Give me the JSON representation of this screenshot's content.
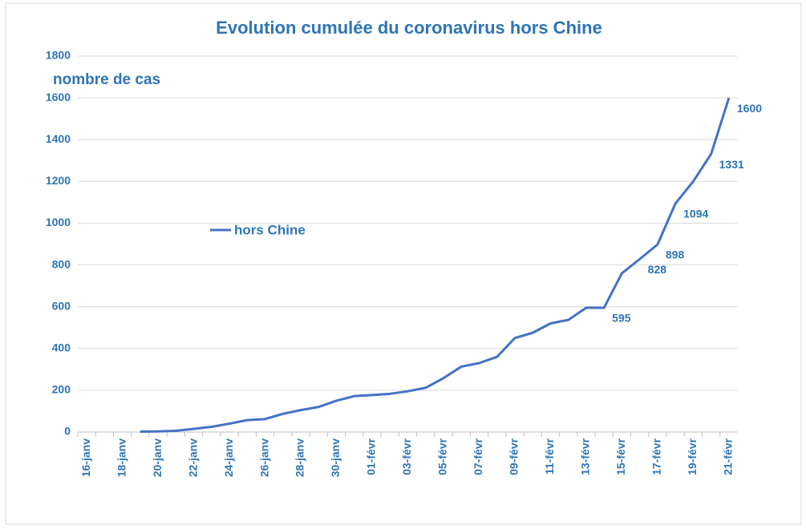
{
  "chart_data": {
    "type": "line",
    "title": "Evolution cumulée du coronavirus hors  Chine",
    "y_label": "nombre de cas",
    "categories": [
      "16-janv",
      null,
      "18-janv",
      null,
      "20-janv",
      null,
      "22-janv",
      null,
      "24-janv",
      null,
      "26-janv",
      null,
      "28-janv",
      null,
      "30-janv",
      null,
      "01-févr",
      null,
      "03-févr",
      null,
      "05-févr",
      null,
      "07-févr",
      null,
      "09-févr",
      null,
      "11-févr",
      null,
      "13-févr",
      null,
      "15-févr",
      null,
      "17-févr",
      null,
      "19-févr",
      null,
      "21-févr"
    ],
    "series": [
      {
        "name": "hors Chine",
        "color": "#4472c4",
        "values": [
          null,
          null,
          null,
          2,
          3,
          6,
          15,
          25,
          40,
          57,
          62,
          87,
          105,
          120,
          150,
          172,
          177,
          183,
          195,
          212,
          258,
          313,
          330,
          360,
          450,
          475,
          520,
          537,
          595,
          595,
          760,
          828,
          898,
          1094,
          1200,
          1331,
          1600
        ],
        "labeled_points": [
          29,
          31,
          32,
          33,
          35,
          36
        ]
      }
    ],
    "ylim": [
      0,
      1800
    ],
    "yticks": [
      0,
      200,
      400,
      600,
      800,
      1000,
      1200,
      1400,
      1600,
      1800
    ],
    "grid": true
  }
}
